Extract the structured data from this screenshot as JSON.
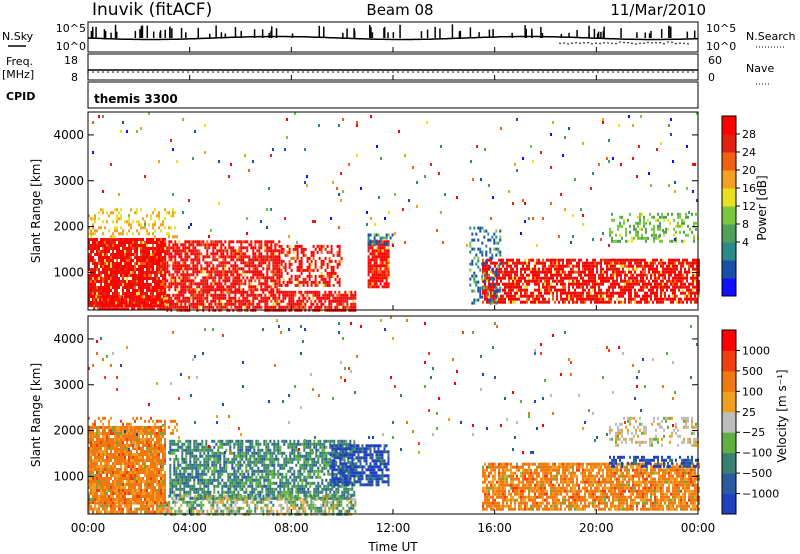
{
  "header": {
    "station": "Inuvik (fitACF)",
    "beam": "Beam 08",
    "date": "11/Mar/2010"
  },
  "colors": {
    "power_scale": [
      "#1010ff",
      "#1a4fa8",
      "#2a8a8a",
      "#4fa05a",
      "#7ac840",
      "#e8e020",
      "#f4a020",
      "#f06010",
      "#e02010",
      "#ff0000"
    ],
    "velocity_scale": [
      "#2040c0",
      "#2a5aa0",
      "#3a8070",
      "#60b040",
      "#bdbdbd",
      "#f0a020",
      "#f07810",
      "#f04010",
      "#ff0000"
    ]
  },
  "chart_data": [
    {
      "type": "line",
      "name": "noise-panel",
      "left_label": "N.Sky",
      "right_label": "N.Search",
      "left_ticks": [
        "10^5",
        "10^0"
      ],
      "right_ticks": [
        "10^5",
        "10^0"
      ]
    },
    {
      "type": "line",
      "name": "frequency-panel",
      "left_label_1": "Freq.",
      "left_label_2": "[MHz]",
      "right_label": "Nave",
      "left_ticks": [
        18,
        8
      ],
      "right_ticks": [
        60,
        0
      ]
    },
    {
      "type": "table",
      "name": "cpid-panel",
      "label": "CPID",
      "value": "themis 3300"
    },
    {
      "type": "heatmap",
      "name": "power-panel",
      "ylabel": "Slant Range [km]",
      "ylim": [
        180,
        4500
      ],
      "yticks": [
        1000,
        2000,
        3000,
        4000
      ],
      "xlim": [
        0,
        24
      ],
      "colorbar": {
        "label": "Power [dB]",
        "ticks": [
          "28",
          "24",
          "20",
          "16",
          "12",
          "8",
          "4"
        ]
      },
      "blobs": [
        {
          "t0": 0.0,
          "t1": 3.0,
          "r0": 300,
          "r1": 1750,
          "dens": 0.9,
          "c": "red"
        },
        {
          "t0": 0.2,
          "t1": 3.2,
          "r0": 200,
          "r1": 500,
          "dens": 0.9,
          "c": "red"
        },
        {
          "t0": 0.0,
          "t1": 3.5,
          "r0": 1800,
          "r1": 2400,
          "dens": 0.25,
          "c": "orange"
        },
        {
          "t0": 3.0,
          "t1": 7.5,
          "r0": 600,
          "r1": 1700,
          "dens": 0.7,
          "c": "red"
        },
        {
          "t0": 3.0,
          "t1": 10.5,
          "r0": 200,
          "r1": 600,
          "dens": 0.75,
          "c": "red"
        },
        {
          "t0": 7.5,
          "t1": 10.0,
          "r0": 700,
          "r1": 1600,
          "dens": 0.5,
          "c": "red"
        },
        {
          "t0": 11.0,
          "t1": 11.8,
          "r0": 700,
          "r1": 1700,
          "dens": 0.9,
          "c": "red"
        },
        {
          "t0": 11.0,
          "t1": 12.0,
          "r0": 1600,
          "r1": 1850,
          "dens": 0.6,
          "c": "blue"
        },
        {
          "t0": 15.5,
          "t1": 24.0,
          "r0": 350,
          "r1": 1300,
          "dens": 0.75,
          "c": "red"
        },
        {
          "t0": 15.0,
          "t1": 16.2,
          "r0": 300,
          "r1": 2000,
          "dens": 0.3,
          "c": "blue"
        },
        {
          "t0": 20.5,
          "t1": 24.0,
          "r0": 1700,
          "r1": 2300,
          "dens": 0.35,
          "c": "green"
        },
        {
          "t0": 0.0,
          "t1": 24.0,
          "r0": 1500,
          "r1": 4500,
          "dens": 0.015,
          "c": "mixed"
        }
      ]
    },
    {
      "type": "heatmap",
      "name": "velocity-panel",
      "ylabel": "Slant Range [km]",
      "xlabel": "Time UT",
      "ylim": [
        180,
        4500
      ],
      "yticks": [
        1000,
        2000,
        3000,
        4000
      ],
      "xlim": [
        0,
        24
      ],
      "xticks": [
        "00:00",
        "04:00",
        "08:00",
        "12:00",
        "16:00",
        "20:00",
        "00:00"
      ],
      "colorbar": {
        "label": "Velocity [m s⁻¹]",
        "ticks": [
          "1000",
          "500",
          "100",
          "25",
          "−25",
          "−100",
          "−500",
          "−1000"
        ]
      },
      "blobs": [
        {
          "t0": 0.0,
          "t1": 3.0,
          "r0": 400,
          "r1": 2100,
          "dens": 0.9,
          "c": "orange"
        },
        {
          "t0": 0.0,
          "t1": 3.2,
          "r0": 200,
          "r1": 450,
          "dens": 0.8,
          "c": "orange"
        },
        {
          "t0": 0.0,
          "t1": 3.5,
          "r0": 1950,
          "r1": 2300,
          "dens": 0.3,
          "c": "orange"
        },
        {
          "t0": 3.2,
          "t1": 10.5,
          "r0": 500,
          "r1": 1800,
          "dens": 0.7,
          "c": "green"
        },
        {
          "t0": 3.0,
          "t1": 10.5,
          "r0": 200,
          "r1": 600,
          "dens": 0.6,
          "c": "greenmix"
        },
        {
          "t0": 9.5,
          "t1": 11.8,
          "r0": 800,
          "r1": 1700,
          "dens": 0.7,
          "c": "blue"
        },
        {
          "t0": 15.5,
          "t1": 24.0,
          "r0": 300,
          "r1": 1300,
          "dens": 0.8,
          "c": "orange"
        },
        {
          "t0": 20.5,
          "t1": 24.0,
          "r0": 1200,
          "r1": 1450,
          "dens": 0.5,
          "c": "blue"
        },
        {
          "t0": 20.5,
          "t1": 24.0,
          "r0": 1700,
          "r1": 2300,
          "dens": 0.35,
          "c": "grey"
        },
        {
          "t0": 0.0,
          "t1": 24.0,
          "r0": 1500,
          "r1": 4500,
          "dens": 0.015,
          "c": "mixed"
        }
      ]
    }
  ]
}
